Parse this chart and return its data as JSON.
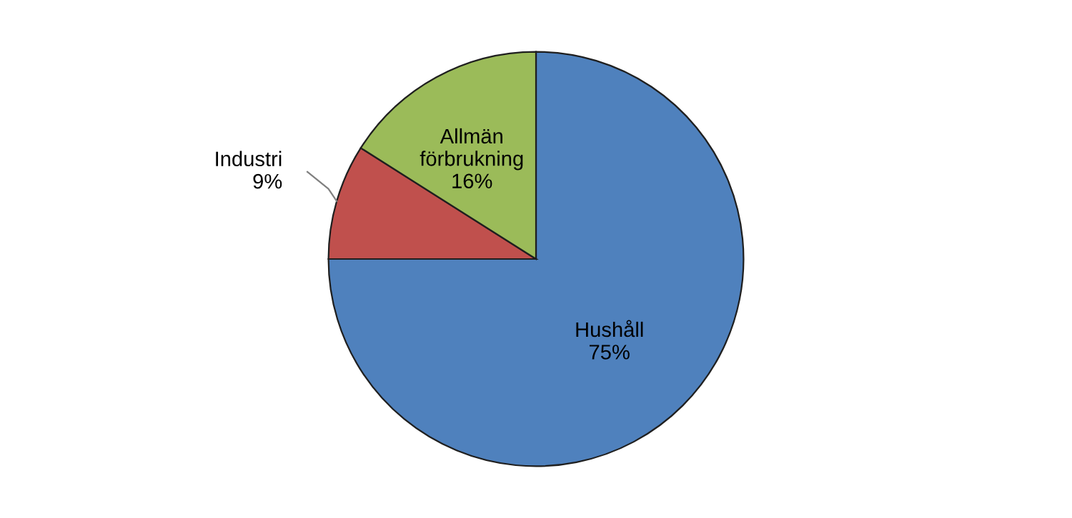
{
  "chart_data": {
    "type": "pie",
    "categories": [
      "Hushåll",
      "Industri",
      "Allmän förbrukning"
    ],
    "values": [
      75,
      9,
      16
    ],
    "value_labels": [
      "75%",
      "9%",
      "16%"
    ],
    "colors": [
      "#4f81bd",
      "#c0504d",
      "#9bbb59"
    ],
    "legend": false
  }
}
